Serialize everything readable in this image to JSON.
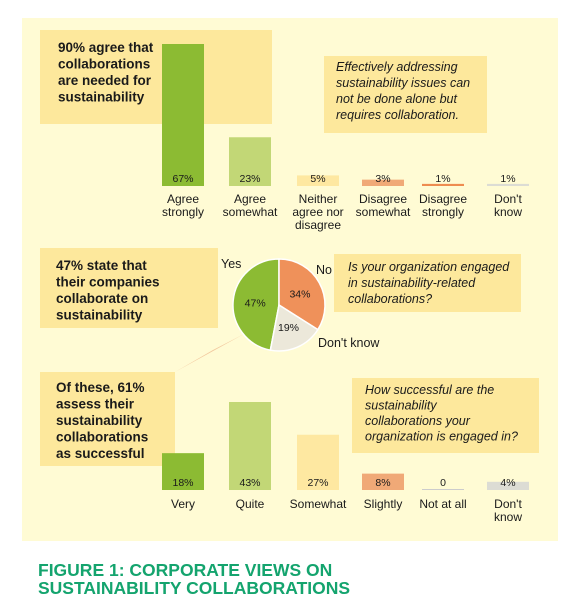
{
  "colors": {
    "panel": "#fffbd4",
    "callout": "#fde89c",
    "question_box": "#fde89c",
    "title": "#14a46e",
    "text": "#1a1a1a"
  },
  "figure_title_line1": "FIGURE 1: CORPORATE VIEWS ON",
  "figure_title_line2": "SUSTAINABILITY COLLABORATIONS",
  "chart_data": [
    {
      "type": "bar",
      "callout_lines": [
        "90% agree that",
        "collaborations",
        "are needed for",
        "sustainability"
      ],
      "note_lines": [
        "Effectively addressing",
        "sustainability issues can",
        "not be done alone but",
        "requires collaboration."
      ],
      "categories": [
        [
          "Agree",
          "strongly"
        ],
        [
          "Agree",
          "somewhat"
        ],
        [
          "Neither",
          "agree nor",
          "disagree"
        ],
        [
          "Disagree",
          "somewhat"
        ],
        [
          "Disagree",
          "strongly"
        ],
        [
          "Don't",
          "know"
        ]
      ],
      "values": [
        67,
        23,
        5,
        3,
        1,
        1
      ],
      "value_labels": [
        "67%",
        "23%",
        "5%",
        "3%",
        "1%",
        "1%"
      ],
      "colors": [
        "#8cbb33",
        "#c2d776",
        "#fee8a1",
        "#f0a977",
        "#ee8c50",
        "#dcdcd4"
      ]
    },
    {
      "type": "pie",
      "callout_lines": [
        "47% state that",
        "their companies",
        "collaborate on",
        "sustainability"
      ],
      "question_lines": [
        "Is your organization engaged",
        "in sustainability-related",
        "collaborations?"
      ],
      "slices": [
        {
          "name": "Yes",
          "value": 47,
          "label": "47%",
          "color": "#8cbb33"
        },
        {
          "name": "No",
          "value": 34,
          "label": "34%",
          "color": "#ef915a"
        },
        {
          "name": "Don't know",
          "value": 19,
          "label": "19%",
          "color": "#ece8da"
        }
      ]
    },
    {
      "type": "bar",
      "callout_lines": [
        "Of these, 61%",
        "assess their",
        "sustainability",
        "collaborations",
        "as successful"
      ],
      "question_lines": [
        "How successful are the",
        "sustainability",
        "collaborations your",
        "organization is engaged in?"
      ],
      "categories": [
        [
          "Very"
        ],
        [
          "Quite"
        ],
        [
          "Somewhat"
        ],
        [
          "Slightly"
        ],
        [
          "Not at all"
        ],
        [
          "Don't",
          "know"
        ]
      ],
      "values": [
        18,
        43,
        27,
        8,
        0,
        4
      ],
      "value_labels": [
        "18%",
        "43%",
        "27%",
        "8%",
        "0",
        "4%"
      ],
      "colors": [
        "#8cbb33",
        "#c2d776",
        "#fee8a1",
        "#f0a977",
        "#ee8c50",
        "#dcdcd4"
      ]
    }
  ]
}
